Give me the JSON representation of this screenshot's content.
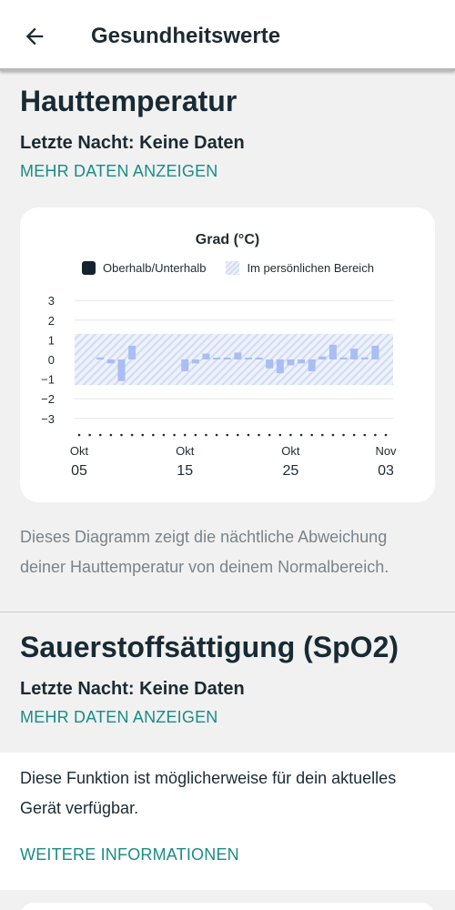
{
  "header": {
    "title": "Gesundheitswerte",
    "back_icon": "arrow-left-icon"
  },
  "skin_temp": {
    "title": "Hauttemperatur",
    "last_night": "Letzte Nacht: Keine Daten",
    "more_link": "MEHR DATEN ANZEIGEN",
    "description": "Dieses Diagramm zeigt die nächtliche Abweichung deiner Hauttemperatur von deinem Normalbereich."
  },
  "chart_data": {
    "type": "bar",
    "title": "Grad (°C)",
    "legend": [
      "Oberhalb/Unterhalb",
      "Im persönlichen Bereich"
    ],
    "legend_position": "top",
    "y_ticks": [
      3,
      2,
      1,
      0,
      -1,
      -2,
      -3
    ],
    "ylim": [
      -3,
      3
    ],
    "personal_range": [
      -1.3,
      1.3
    ],
    "x_start": "Okt 05",
    "x_end": "Nov 03",
    "x_tick_labels": [
      {
        "month": "Okt",
        "day": "05",
        "index": 0
      },
      {
        "month": "Okt",
        "day": "15",
        "index": 10
      },
      {
        "month": "Okt",
        "day": "25",
        "index": 20
      },
      {
        "month": "Nov",
        "day": "03",
        "index": 29
      }
    ],
    "values": [
      null,
      null,
      0.1,
      -0.2,
      -1.1,
      0.7,
      null,
      null,
      null,
      null,
      -0.6,
      -0.2,
      0.3,
      0.0,
      0.0,
      0.35,
      0.0,
      0.0,
      -0.45,
      -0.7,
      -0.3,
      -0.2,
      -0.6,
      0.15,
      0.75,
      0.1,
      0.55,
      0.1,
      0.7,
      null
    ],
    "colors": {
      "bar": "#a9bef2",
      "band_light": "#eef2fb",
      "band_hatch": "#d3dcf3",
      "grid": "#e6e6e6"
    }
  },
  "spo2": {
    "title": "Sauerstoffsättigung (SpO2)",
    "last_night": "Letzte Nacht: Keine Daten",
    "more_link": "MEHR DATEN ANZEIGEN"
  },
  "info": {
    "text": "Diese Funktion ist möglicherweise für dein aktuelles Gerät verfügbar.",
    "link": "WEITERE INFORMATIONEN"
  },
  "colors": {
    "accent": "#1a8c86",
    "text_dark": "#1b2a33",
    "text_muted": "#7a838a"
  }
}
